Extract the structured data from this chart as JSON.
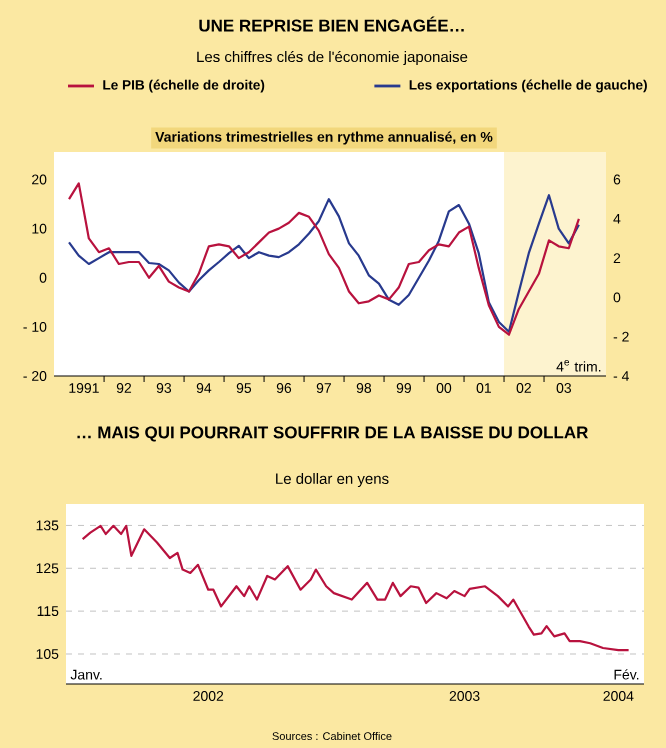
{
  "chart_data": [
    {
      "type": "line",
      "title": "UNE REPRISE BIEN ENGAGÉE…",
      "subtitle": "Les chiffres clés de l'économie japonaise",
      "annotations": [
        "Variations trimestrielles en rythme annualisé, en %",
        "4$^{e}$ trim."
      ],
      "legend": "top",
      "x": [
        "1991-02-15",
        "1991-05-15",
        "1991-08-15",
        "1991-11-15",
        "1992-02-15",
        "1992-05-15",
        "1992-08-15",
        "1992-11-15",
        "1993-02-15",
        "1993-05-15",
        "1993-08-15",
        "1993-11-15",
        "1994-02-15",
        "1994-05-15",
        "1994-08-15",
        "1994-11-15",
        "1995-02-15",
        "1995-05-15",
        "1995-08-15",
        "1995-11-15",
        "1996-02-15",
        "1996-05-15",
        "1996-08-15",
        "1996-11-15",
        "1997-02-15",
        "1997-05-15",
        "1997-08-15",
        "1997-11-15",
        "1998-02-15",
        "1998-05-15",
        "1998-08-15",
        "1998-11-15",
        "1999-02-15",
        "1999-05-15",
        "1999-08-15",
        "1999-11-15",
        "2000-02-15",
        "2000-05-15",
        "2000-08-15",
        "2000-11-15",
        "2001-02-15",
        "2001-05-15",
        "2001-08-15",
        "2001-11-15",
        "2002-02-15",
        "2002-05-15",
        "2002-08-15",
        "2002-11-15",
        "2003-02-15",
        "2003-05-15",
        "2003-08-15",
        "2003-11-15"
      ],
      "xlim": [
        "1990-10-01",
        "2004-07-20"
      ],
      "xticks": [
        {
          "value": "1991-07-01",
          "label": "1991"
        },
        {
          "value": "1992-01-01",
          "label": null
        },
        {
          "value": "1992-07-01",
          "label": "92"
        },
        {
          "value": "1993-01-01",
          "label": null
        },
        {
          "value": "1993-07-01",
          "label": "93"
        },
        {
          "value": "1994-01-01",
          "label": null
        },
        {
          "value": "1994-07-01",
          "label": "94"
        },
        {
          "value": "1995-01-01",
          "label": null
        },
        {
          "value": "1995-07-01",
          "label": "95"
        },
        {
          "value": "1996-01-01",
          "label": null
        },
        {
          "value": "1996-07-01",
          "label": "96"
        },
        {
          "value": "1997-01-01",
          "label": null
        },
        {
          "value": "1997-07-01",
          "label": "97"
        },
        {
          "value": "1998-01-01",
          "label": null
        },
        {
          "value": "1998-07-01",
          "label": "98"
        },
        {
          "value": "1999-01-01",
          "label": null
        },
        {
          "value": "1999-07-01",
          "label": "99"
        },
        {
          "value": "2000-01-01",
          "label": null
        },
        {
          "value": "2000-07-01",
          "label": "00"
        },
        {
          "value": "2001-01-01",
          "label": null
        },
        {
          "value": "2001-07-01",
          "label": "01"
        },
        {
          "value": "2002-01-01",
          "label": null
        },
        {
          "value": "2002-07-01",
          "label": "02"
        },
        {
          "value": "2003-01-01",
          "label": null
        },
        {
          "value": "2003-07-01",
          "label": "03"
        }
      ],
      "series": [
        {
          "name": "Le PIB (échelle de droite)",
          "color": "#b8123e",
          "axis": "y2",
          "values": [
            5.0,
            5.8,
            3.0,
            2.3,
            2.5,
            1.7,
            1.8,
            1.8,
            1.0,
            1.6,
            0.8,
            0.5,
            0.3,
            1.2,
            2.6,
            2.7,
            2.6,
            2.0,
            2.3,
            2.8,
            3.3,
            3.5,
            3.8,
            4.3,
            4.1,
            3.4,
            2.2,
            1.5,
            0.3,
            -0.3,
            -0.2,
            0.1,
            -0.1,
            0.5,
            1.7,
            1.8,
            2.4,
            2.7,
            2.6,
            3.3,
            3.6,
            1.5,
            -0.4,
            -1.5,
            -1.9,
            -0.6,
            0.3,
            1.2,
            2.9,
            2.6,
            2.5,
            4.0
          ]
        },
        {
          "name": "Les exportations (échelle de gauche)",
          "color": "#283a8e",
          "values": [
            7.2,
            4.5,
            2.8,
            4.0,
            5.2,
            5.2,
            5.2,
            5.2,
            3.0,
            2.8,
            1.5,
            -1.0,
            -2.8,
            -0.5,
            1.5,
            3.2,
            5.0,
            6.5,
            4.0,
            5.2,
            4.5,
            4.2,
            5.2,
            6.8,
            9.0,
            11.5,
            16.0,
            12.5,
            7.0,
            4.5,
            0.5,
            -1.2,
            -4.5,
            -5.5,
            -3.5,
            0.0,
            3.5,
            7.5,
            13.5,
            14.8,
            11.0,
            5.0,
            -5.0,
            -9.0,
            -11.0,
            -3.0,
            5.0,
            11.0,
            16.8,
            10.0,
            7.0,
            10.8
          ]
        }
      ],
      "ylim": [
        -20,
        25.6
      ],
      "yticks": [
        20,
        10,
        0,
        {
          "value": -10,
          "label": "- 10"
        },
        {
          "value": -20,
          "label": "- 20"
        }
      ],
      "y2lim": [
        -4,
        7.4
      ],
      "y2ticks": [
        6,
        4,
        2,
        0,
        {
          "value": -2,
          "label": "- 2"
        },
        {
          "value": -4,
          "label": "- 4"
        }
      ],
      "bands": [
        {
          "axis": "x",
          "from": "2002-01-01",
          "to": "2004-07-20",
          "color": "#fdf3cf"
        }
      ]
    },
    {
      "type": "line",
      "title": "… MAIS QUI POURRAIT SOUFFRIR DE LA BAISSE DU DOLLAR",
      "subtitle": "Le dollar en yens",
      "annotations": [
        "Janv.",
        "Fév.",
        "Sources : Cabinet Office"
      ],
      "color": "#b8123e",
      "grid": "y",
      "x": [
        2002.01,
        2002.04,
        2002.08,
        2002.1,
        2002.13,
        2002.16,
        2002.18,
        2002.2,
        2002.25,
        2002.3,
        2002.35,
        2002.38,
        2002.4,
        2002.43,
        2002.46,
        2002.5,
        2002.52,
        2002.55,
        2002.61,
        2002.64,
        2002.66,
        2002.69,
        2002.73,
        2002.76,
        2002.81,
        2002.86,
        2002.9,
        2002.92,
        2002.96,
        2002.99,
        2003.06,
        2003.12,
        2003.16,
        2003.19,
        2003.22,
        2003.25,
        2003.29,
        2003.32,
        2003.35,
        2003.39,
        2003.43,
        2003.46,
        2003.5,
        2003.52,
        2003.58,
        2003.63,
        2003.67,
        2003.69,
        2003.75,
        2003.77,
        2003.8,
        2003.82,
        2003.85,
        2003.89,
        2003.91,
        2003.95,
        2003.99,
        2004.04,
        2004.1,
        2004.14
      ],
      "values": [
        131.8,
        133.3,
        134.9,
        133,
        134.9,
        133,
        134.9,
        127.9,
        134.1,
        131,
        127.4,
        128.6,
        124.7,
        123.9,
        125.8,
        120,
        120,
        116.1,
        120.8,
        118.5,
        120.8,
        117.7,
        123.2,
        122.4,
        125.5,
        120,
        122.4,
        124.7,
        120.8,
        119.2,
        117.7,
        121.6,
        117.7,
        117.7,
        121.6,
        118.5,
        120.8,
        120.5,
        116.9,
        119.2,
        118,
        119.7,
        118.5,
        120.2,
        120.8,
        118.5,
        116.1,
        117.7,
        111.4,
        109.5,
        109.8,
        111.5,
        109.1,
        109.8,
        108,
        108,
        107.5,
        106.4,
        105.9,
        105.9
      ],
      "xlim": [
        2001.945,
        2004.2
      ],
      "xticks": [
        {
          "value": 2002.5,
          "label": "2002"
        },
        {
          "value": 2003,
          "label": null
        },
        {
          "value": 2003.5,
          "label": "2003"
        },
        {
          "value": 2004,
          "label": null
        },
        {
          "value": 2004.1,
          "label": "2004"
        }
      ],
      "ylim": [
        98,
        140
      ],
      "yticks": [
        105,
        115,
        125,
        135
      ]
    }
  ]
}
